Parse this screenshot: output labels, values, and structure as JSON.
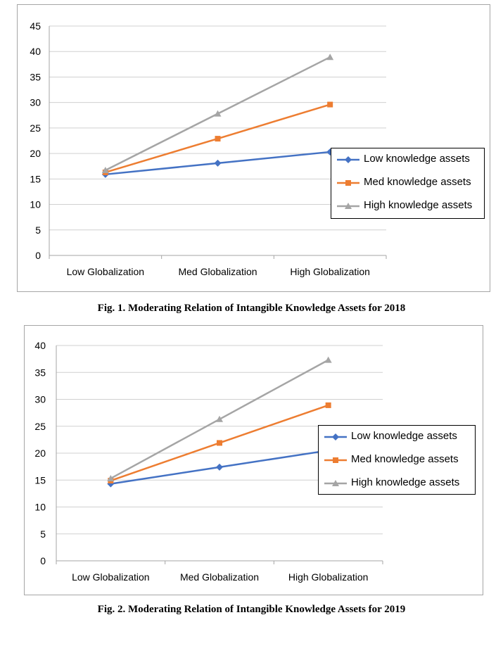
{
  "chart_data": [
    {
      "type": "line",
      "categories": [
        "Low Globalization",
        "Med Globalization",
        "High Globalization"
      ],
      "ylim": [
        0,
        45
      ],
      "ytick_step": 5,
      "grid": true,
      "legend_position": "right",
      "series": [
        {
          "name": "Low knowledge assets",
          "values": [
            15.9,
            18.1,
            20.3
          ],
          "color": "#4472c4",
          "marker": "diamond"
        },
        {
          "name": "Med knowledge assets",
          "values": [
            16.3,
            22.9,
            29.6
          ],
          "color": "#ed7d31",
          "marker": "square"
        },
        {
          "name": "High knowledge assets",
          "values": [
            16.7,
            27.8,
            38.9
          ],
          "color": "#a5a5a5",
          "marker": "triangle"
        }
      ],
      "caption": "Fig. 1. Moderating Relation of Intangible Knowledge Assets for 2018"
    },
    {
      "type": "line",
      "categories": [
        "Low Globalization",
        "Med Globalization",
        "High Globalization"
      ],
      "ylim": [
        0,
        40
      ],
      "ytick_step": 5,
      "grid": true,
      "legend_position": "right",
      "series": [
        {
          "name": "Low knowledge assets",
          "values": [
            14.3,
            17.4,
            20.5
          ],
          "color": "#4472c4",
          "marker": "diamond"
        },
        {
          "name": "Med knowledge assets",
          "values": [
            14.9,
            21.9,
            28.9
          ],
          "color": "#ed7d31",
          "marker": "square"
        },
        {
          "name": "High knowledge assets",
          "values": [
            15.3,
            26.3,
            37.3
          ],
          "color": "#a5a5a5",
          "marker": "triangle"
        }
      ],
      "caption": "Fig. 2. Moderating Relation of Intangible Knowledge Assets for 2019"
    }
  ]
}
